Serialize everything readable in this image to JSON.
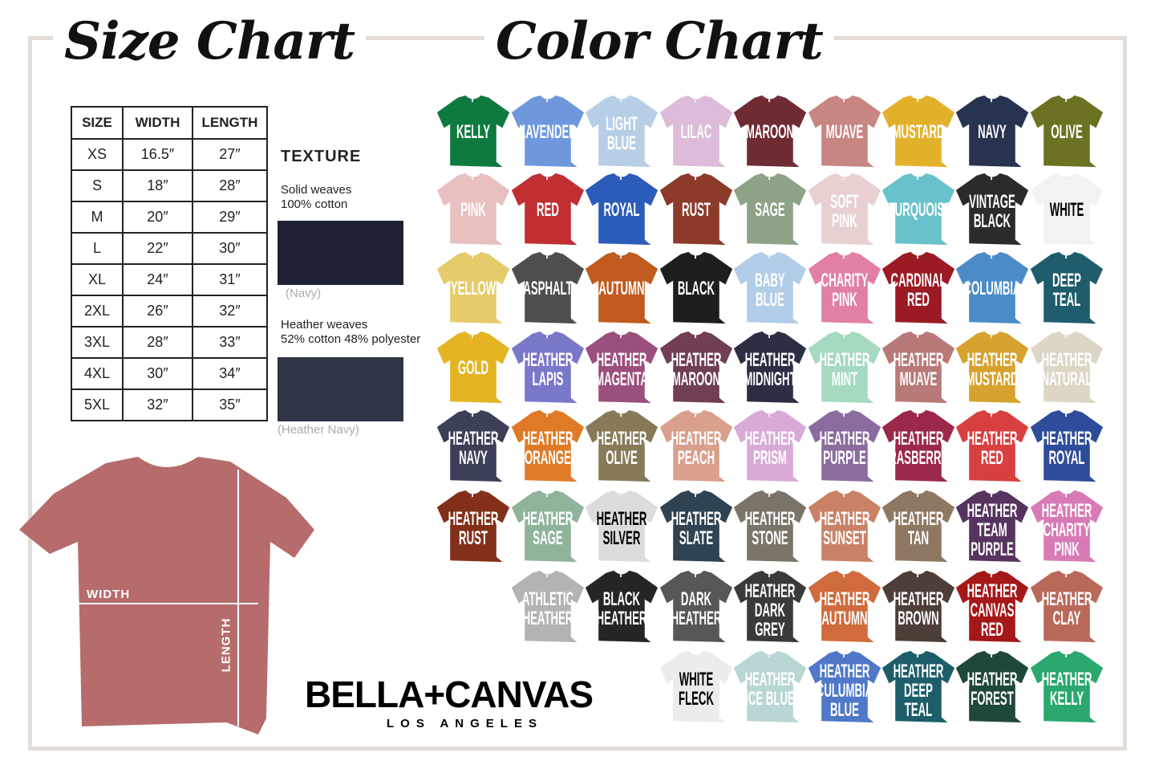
{
  "size_chart": {
    "title": "Size Chart",
    "headers": [
      "SIZE",
      "WIDTH",
      "LENGTH"
    ],
    "rows": [
      [
        "XS",
        "16.5″",
        "27″"
      ],
      [
        "S",
        "18″",
        "28″"
      ],
      [
        "M",
        "20″",
        "29″"
      ],
      [
        "L",
        "22″",
        "30″"
      ],
      [
        "XL",
        "24″",
        "31″"
      ],
      [
        "2XL",
        "26″",
        "32″"
      ],
      [
        "3XL",
        "28″",
        "33″"
      ],
      [
        "4XL",
        "30″",
        "34″"
      ],
      [
        "5XL",
        "32″",
        "35″"
      ]
    ]
  },
  "texture": {
    "title": "TEXTURE",
    "solid": "Solid weaves\n100% cotton",
    "solid_caption": "(Navy)",
    "solid_color": "#1d2133",
    "heather": "Heather weaves\n52% cotton 48% polyester",
    "heather_caption": "(Heather Navy)",
    "heather_color": "#2f3544"
  },
  "diagram": {
    "width_label": "WIDTH",
    "length_label": "LENGTH",
    "shirt_color": "#b66c6c"
  },
  "brand": {
    "name": "BELLA+CANVAS",
    "sub": "LOS ANGELES"
  },
  "color_chart": {
    "title": "Color Chart",
    "rows": [
      [
        {
          "n": "KELLY",
          "c": "#0f7a3f"
        },
        {
          "n": "LAVENDER",
          "c": "#6f98dc"
        },
        {
          "n": "LIGHT\nBLUE",
          "c": "#b7cfe6"
        },
        {
          "n": "LILAC",
          "c": "#dcbcd8"
        },
        {
          "n": "MAROON",
          "c": "#6e2b33"
        },
        {
          "n": "MUAVE",
          "c": "#c78682"
        },
        {
          "n": "MUSTARD",
          "c": "#e2b12c"
        },
        {
          "n": "NAVY",
          "c": "#283350"
        },
        {
          "n": "OLIVE",
          "c": "#6c7222"
        }
      ],
      [
        {
          "n": "PINK",
          "c": "#e8c0c0"
        },
        {
          "n": "RED",
          "c": "#c22f33"
        },
        {
          "n": "ROYAL",
          "c": "#2c5cba"
        },
        {
          "n": "RUST",
          "c": "#8c3b2b"
        },
        {
          "n": "SAGE",
          "c": "#8ea287"
        },
        {
          "n": "SOFT\nPINK",
          "c": "#e8d0d0"
        },
        {
          "n": "TURQUOISE",
          "c": "#68c2cc"
        },
        {
          "n": "VINTAGE\nBLACK",
          "c": "#2b2b2b"
        },
        {
          "n": "WHITE",
          "c": "#f2f2f2",
          "t": "#000"
        }
      ],
      [
        {
          "n": "YELLOW",
          "c": "#e6cb6a"
        },
        {
          "n": "ASPHALT",
          "c": "#4e4e4e"
        },
        {
          "n": "AUTUMN",
          "c": "#c05a1e"
        },
        {
          "n": "BLACK",
          "c": "#1e1e1e"
        },
        {
          "n": "BABY\nBLUE",
          "c": "#b1cde8"
        },
        {
          "n": "CHARITY\nPINK",
          "c": "#e27fa5"
        },
        {
          "n": "CARDINAL\nRED",
          "c": "#9c1a24"
        },
        {
          "n": "COLUMBIA",
          "c": "#4b8cc8"
        },
        {
          "n": "DEEP\nTEAL",
          "c": "#1f5c6c"
        }
      ],
      [
        {
          "n": "GOLD",
          "c": "#e4b423"
        },
        {
          "n": "HEATHER\nLAPIS",
          "c": "#7a78c8"
        },
        {
          "n": "HEATHER\nMAGENTA",
          "c": "#9b4f7c"
        },
        {
          "n": "HEATHER\nMAROON",
          "c": "#703e55"
        },
        {
          "n": "HEATHER\nMIDNIGHT",
          "c": "#2c2e44"
        },
        {
          "n": "HEATHER\nMINT",
          "c": "#a5d9c0"
        },
        {
          "n": "HEATHER\nMUAVE",
          "c": "#b87a78"
        },
        {
          "n": "HEATHER\nMUSTARD",
          "c": "#d6a22e"
        },
        {
          "n": "HEATHER\nNATURAL",
          "c": "#ddd6c6"
        }
      ],
      [
        {
          "n": "HEATHER\nNAVY",
          "c": "#3b3f58"
        },
        {
          "n": "HEATHER\nORANGE",
          "c": "#df7b27"
        },
        {
          "n": "HEATHER\nOLIVE",
          "c": "#867a58"
        },
        {
          "n": "HEATHER\nPEACH",
          "c": "#d9a08d"
        },
        {
          "n": "HEATHER\nPRISM",
          "c": "#d9aad8"
        },
        {
          "n": "HEATHER\nPURPLE",
          "c": "#8a6c9e"
        },
        {
          "n": "HEATHER\nRASBERRY",
          "c": "#9c2849"
        },
        {
          "n": "HEATHER\nRED",
          "c": "#d84040"
        },
        {
          "n": "HEATHER\nROYAL",
          "c": "#2e4c9a"
        }
      ],
      [
        {
          "n": "HEATHER\nRUST",
          "c": "#82301a"
        },
        {
          "n": "HEATHER\nSAGE",
          "c": "#8fb49a"
        },
        {
          "n": "HEATHER\nSILVER",
          "c": "#dcdcdc",
          "t": "#000"
        },
        {
          "n": "HEATHER\nSLATE",
          "c": "#2f4352"
        },
        {
          "n": "HEATHER\nSTONE",
          "c": "#7a7568"
        },
        {
          "n": "HEATHER\nSUNSET",
          "c": "#c98266"
        },
        {
          "n": "HEATHER\nTAN",
          "c": "#8f7862"
        },
        {
          "n": "HEATHER\nTEAM\nPURPLE",
          "c": "#57345f"
        },
        {
          "n": "HEATHER\nCHARITY\nPINK",
          "c": "#d87ab6"
        }
      ],
      [
        {
          "n": "ATHLETIC\nHEATHER",
          "c": "#b3b3b3"
        },
        {
          "n": "BLACK\nHEATHER",
          "c": "#252525"
        },
        {
          "n": "DARK\nHEATHER",
          "c": "#575757"
        },
        {
          "n": "HEATHER\nDARK GREY",
          "c": "#3a3a3a"
        },
        {
          "n": "HEATHER\nAUTUMN",
          "c": "#cf6b3c"
        },
        {
          "n": "HEATHER\nBROWN",
          "c": "#4d3e38"
        },
        {
          "n": "HEATHER\nCANVAS\nRED",
          "c": "#a61818"
        },
        {
          "n": "HEATHER\nCLAY",
          "c": "#b9695a"
        }
      ],
      [
        {
          "n": "WHITE\nFLECK",
          "c": "#ececec",
          "t": "#000"
        },
        {
          "n": "HEATHER\nICE BLUE",
          "c": "#b8d6d4"
        },
        {
          "n": "HEATHER\nCULUMBIA\nBLUE",
          "c": "#4f78c8"
        },
        {
          "n": "HEATHER\nDEEP\nTEAL",
          "c": "#1d5e6a"
        },
        {
          "n": "HEATHER\nFOREST",
          "c": "#1e4838"
        },
        {
          "n": "HEATHER\nKELLY",
          "c": "#2aa86e"
        }
      ]
    ]
  }
}
